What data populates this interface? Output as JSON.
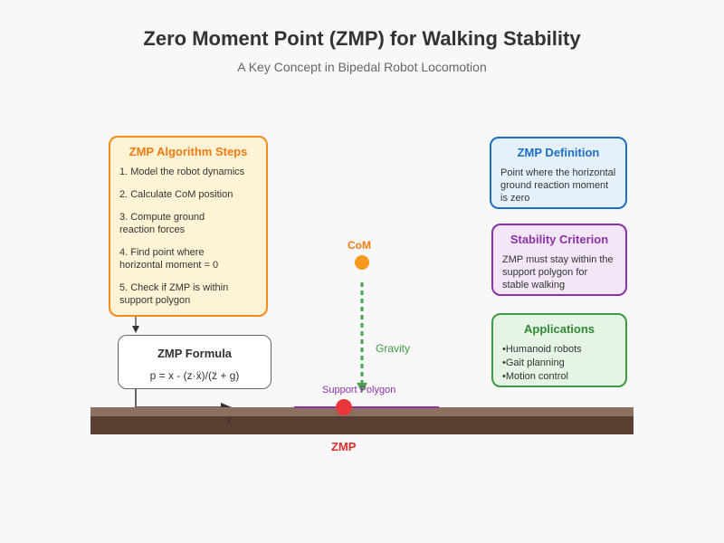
{
  "header": {
    "title": "Zero Moment Point (ZMP) for Walking Stability",
    "subtitle": "A Key Concept in Bipedal Robot Locomotion"
  },
  "algorithm": {
    "title": "ZMP Algorithm Steps",
    "steps": [
      "1. Model the robot dynamics",
      "2. Calculate CoM position",
      "3. Compute ground\n   reaction forces",
      "4. Find point where\n   horizontal moment = 0",
      "5. Check if ZMP is within\n   support polygon"
    ]
  },
  "formula": {
    "title": "ZMP Formula",
    "text": "p = x - (z·ẍ)/(z̈ + g)"
  },
  "definition": {
    "title": "ZMP Definition",
    "text": "Point where the horizontal ground reaction moment is zero"
  },
  "criterion": {
    "title": "Stability Criterion",
    "text": "ZMP must stay within the support polygon for stable walking"
  },
  "applications": {
    "title": "Applications",
    "items": [
      "Humanoid robots",
      "Gait planning",
      "Motion control"
    ]
  },
  "diagram": {
    "com_label": "CoM",
    "gravity_label": "Gravity",
    "support_polygon_label": "Support Polygon",
    "zmp_label": "ZMP",
    "x_axis_label": "x"
  },
  "colors": {
    "ground_top": "#8c7060",
    "ground_bottom": "#5a3e32",
    "com": "#f59a1f",
    "gravity": "#46a64c",
    "support_polygon": "#8b32a8",
    "zmp": "#e8373a"
  }
}
